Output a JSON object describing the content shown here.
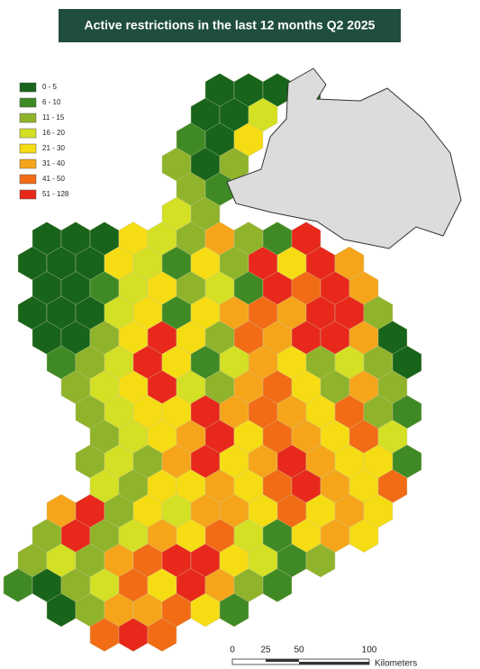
{
  "title": "Active  restrictions in the last 12 months Q2 2025",
  "legend": [
    {
      "label": "0 - 5",
      "color": "#17641a"
    },
    {
      "label": "6 - 10",
      "color": "#3f8a24"
    },
    {
      "label": "11 - 15",
      "color": "#8fb32a"
    },
    {
      "label": "16 - 20",
      "color": "#d3e024"
    },
    {
      "label": "21 - 30",
      "color": "#f6dc13"
    },
    {
      "label": "31 - 40",
      "color": "#f6a51a"
    },
    {
      "label": "41 - 50",
      "color": "#f26b15"
    },
    {
      "label": "51 - 128",
      "color": "#e8281b"
    }
  ],
  "hexes": [
    [
      null,
      null,
      null,
      null,
      null,
      null,
      null,
      0,
      0,
      0,
      0,
      null,
      null,
      null
    ],
    [
      null,
      null,
      null,
      null,
      null,
      null,
      0,
      0,
      3,
      null,
      null,
      null,
      null,
      null
    ],
    [
      null,
      null,
      null,
      null,
      null,
      null,
      1,
      0,
      4,
      null,
      null,
      null,
      null,
      null
    ],
    [
      null,
      null,
      null,
      null,
      null,
      2,
      0,
      2,
      null,
      null,
      null,
      null,
      null,
      null
    ],
    [
      null,
      null,
      null,
      null,
      null,
      null,
      2,
      1,
      null,
      null,
      null,
      null,
      null,
      null
    ],
    [
      null,
      null,
      null,
      null,
      null,
      3,
      2,
      null,
      null,
      null,
      null,
      null,
      null,
      null
    ],
    [
      null,
      0,
      0,
      0,
      4,
      3,
      2,
      5,
      2,
      1,
      7,
      null,
      null,
      null
    ],
    [
      0,
      0,
      0,
      4,
      3,
      1,
      4,
      2,
      7,
      4,
      7,
      5,
      null,
      null
    ],
    [
      null,
      0,
      0,
      1,
      3,
      4,
      2,
      3,
      1,
      7,
      6,
      7,
      5,
      null
    ],
    [
      0,
      0,
      0,
      3,
      4,
      1,
      4,
      5,
      6,
      5,
      7,
      7,
      2,
      null
    ],
    [
      null,
      0,
      0,
      2,
      4,
      7,
      4,
      2,
      6,
      5,
      7,
      7,
      5,
      0
    ],
    [
      null,
      1,
      2,
      3,
      7,
      4,
      1,
      3,
      5,
      4,
      2,
      3,
      2,
      0
    ],
    [
      null,
      null,
      2,
      3,
      4,
      7,
      3,
      2,
      5,
      6,
      4,
      2,
      5,
      2
    ],
    [
      null,
      null,
      2,
      3,
      4,
      4,
      7,
      5,
      6,
      5,
      4,
      6,
      2,
      1
    ],
    [
      null,
      null,
      null,
      2,
      3,
      4,
      5,
      7,
      4,
      6,
      5,
      4,
      6,
      3
    ],
    [
      null,
      null,
      2,
      3,
      2,
      5,
      7,
      4,
      5,
      7,
      5,
      4,
      4,
      1
    ],
    [
      null,
      null,
      null,
      3,
      2,
      4,
      4,
      5,
      4,
      6,
      7,
      5,
      4,
      6
    ],
    [
      null,
      5,
      7,
      2,
      4,
      3,
      5,
      5,
      4,
      6,
      4,
      5,
      4,
      null
    ],
    [
      null,
      2,
      7,
      2,
      3,
      5,
      4,
      6,
      3,
      1,
      4,
      5,
      4,
      null
    ],
    [
      2,
      3,
      2,
      5,
      6,
      7,
      7,
      4,
      3,
      1,
      2,
      null,
      null,
      null
    ],
    [
      1,
      0,
      2,
      3,
      6,
      4,
      7,
      5,
      2,
      1,
      null,
      null,
      null,
      null
    ],
    [
      null,
      0,
      2,
      5,
      5,
      6,
      4,
      1,
      null,
      null,
      null,
      null,
      null,
      null
    ],
    [
      null,
      null,
      null,
      6,
      7,
      6,
      null,
      null,
      null,
      null,
      null,
      null,
      null,
      null
    ]
  ],
  "scale_bar": {
    "labels": [
      "0",
      "25",
      "50",
      "100"
    ],
    "unit": "Kilometers"
  }
}
